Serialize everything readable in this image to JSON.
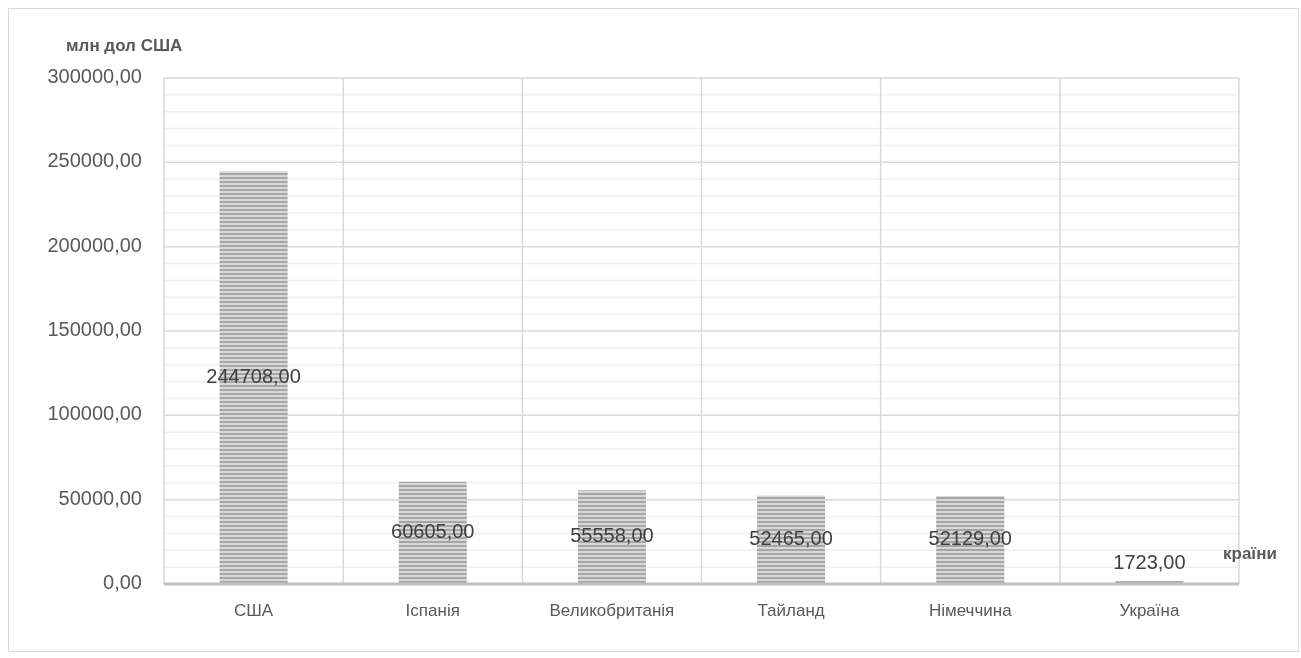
{
  "chart_data": {
    "type": "bar",
    "ylabel": "млн дол США",
    "xlabel": "країни",
    "categories": [
      "США",
      "Іспанія",
      "Великобританія",
      "Тайланд",
      "Німеччина",
      "Україна"
    ],
    "values": [
      244708,
      60605,
      55558,
      52465,
      52129,
      1723
    ],
    "value_labels": [
      "244708,00",
      "60605,00",
      "55558,00",
      "52465,00",
      "52129,00",
      "1723,00"
    ],
    "color": "#a6a6a6",
    "ylim": [
      0,
      300000
    ],
    "yticks": [
      {
        "value": 0,
        "label": "0,00"
      },
      {
        "value": 10000,
        "label": null
      },
      {
        "value": 20000,
        "label": null
      },
      {
        "value": 30000,
        "label": null
      },
      {
        "value": 40000,
        "label": null
      },
      {
        "value": 50000,
        "label": "50000,00"
      },
      {
        "value": 60000,
        "label": null
      },
      {
        "value": 70000,
        "label": null
      },
      {
        "value": 80000,
        "label": null
      },
      {
        "value": 90000,
        "label": null
      },
      {
        "value": 100000,
        "label": "100000,00"
      },
      {
        "value": 110000,
        "label": null
      },
      {
        "value": 120000,
        "label": null
      },
      {
        "value": 130000,
        "label": null
      },
      {
        "value": 140000,
        "label": null
      },
      {
        "value": 150000,
        "label": "150000,00"
      },
      {
        "value": 160000,
        "label": null
      },
      {
        "value": 170000,
        "label": null
      },
      {
        "value": 180000,
        "label": null
      },
      {
        "value": 190000,
        "label": null
      },
      {
        "value": 200000,
        "label": "200000,00"
      },
      {
        "value": 210000,
        "label": null
      },
      {
        "value": 220000,
        "label": null
      },
      {
        "value": 230000,
        "label": null
      },
      {
        "value": 240000,
        "label": null
      },
      {
        "value": 250000,
        "label": "250000,00"
      },
      {
        "value": 260000,
        "label": null
      },
      {
        "value": 270000,
        "label": null
      },
      {
        "value": 280000,
        "label": null
      },
      {
        "value": 290000,
        "label": null
      },
      {
        "value": 300000,
        "label": "300000,00"
      }
    ],
    "grid": true
  }
}
